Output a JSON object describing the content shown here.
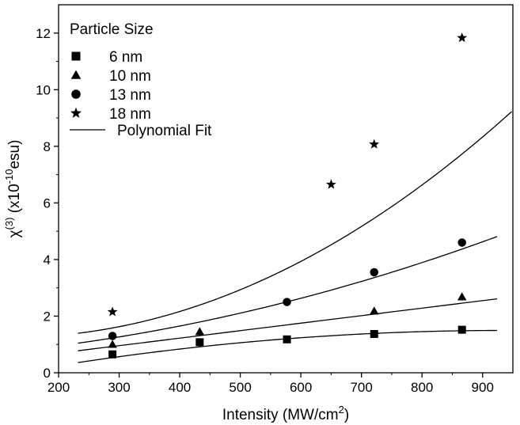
{
  "chart_data": {
    "type": "scatter",
    "xlabel": "Intensity (MW/cm²)",
    "ylabel": "χ(3) (x10-10esu)",
    "xlim": [
      200,
      950
    ],
    "ylim": [
      0,
      13
    ],
    "xticks": [
      200,
      300,
      400,
      500,
      600,
      700,
      800,
      900
    ],
    "yticks": [
      0,
      2,
      4,
      6,
      8,
      10,
      12
    ],
    "legend_title": "Particle Size",
    "legend_position": "top-left",
    "fit_label": "Polynomial Fit",
    "grid": false,
    "series": [
      {
        "name": "6 nm",
        "marker": "square",
        "x": [
          289,
          433,
          577,
          721,
          866
        ],
        "y": [
          0.65,
          1.08,
          1.18,
          1.37,
          1.52
        ],
        "fit_x": [
          232,
          925
        ],
        "fit_coeffs": [
          -0.5147,
          0.0043,
          -2.3e-06
        ]
      },
      {
        "name": "10 nm",
        "marker": "triangle",
        "x": [
          289,
          433,
          721,
          866
        ],
        "y": [
          1.0,
          1.45,
          2.18,
          2.68
        ],
        "fit_x": [
          232,
          925
        ],
        "fit_coeffs": [
          0.1625,
          0.00265,
          0
        ]
      },
      {
        "name": "13 nm",
        "marker": "circle",
        "x": [
          289,
          577,
          721,
          866
        ],
        "y": [
          1.3,
          2.5,
          3.55,
          4.6
        ],
        "fit_x": [
          232,
          925
        ],
        "fit_coeffs": [
          0.5313,
          0.0014,
          3.5e-06
        ]
      },
      {
        "name": "18 nm",
        "marker": "star",
        "x": [
          289,
          650,
          721,
          866
        ],
        "y": [
          2.15,
          6.65,
          8.07,
          11.83
        ],
        "fit_x": [
          232,
          950
        ],
        "fit_coeffs": [
          1.4081,
          -0.00275,
          1.16e-05
        ]
      }
    ]
  }
}
